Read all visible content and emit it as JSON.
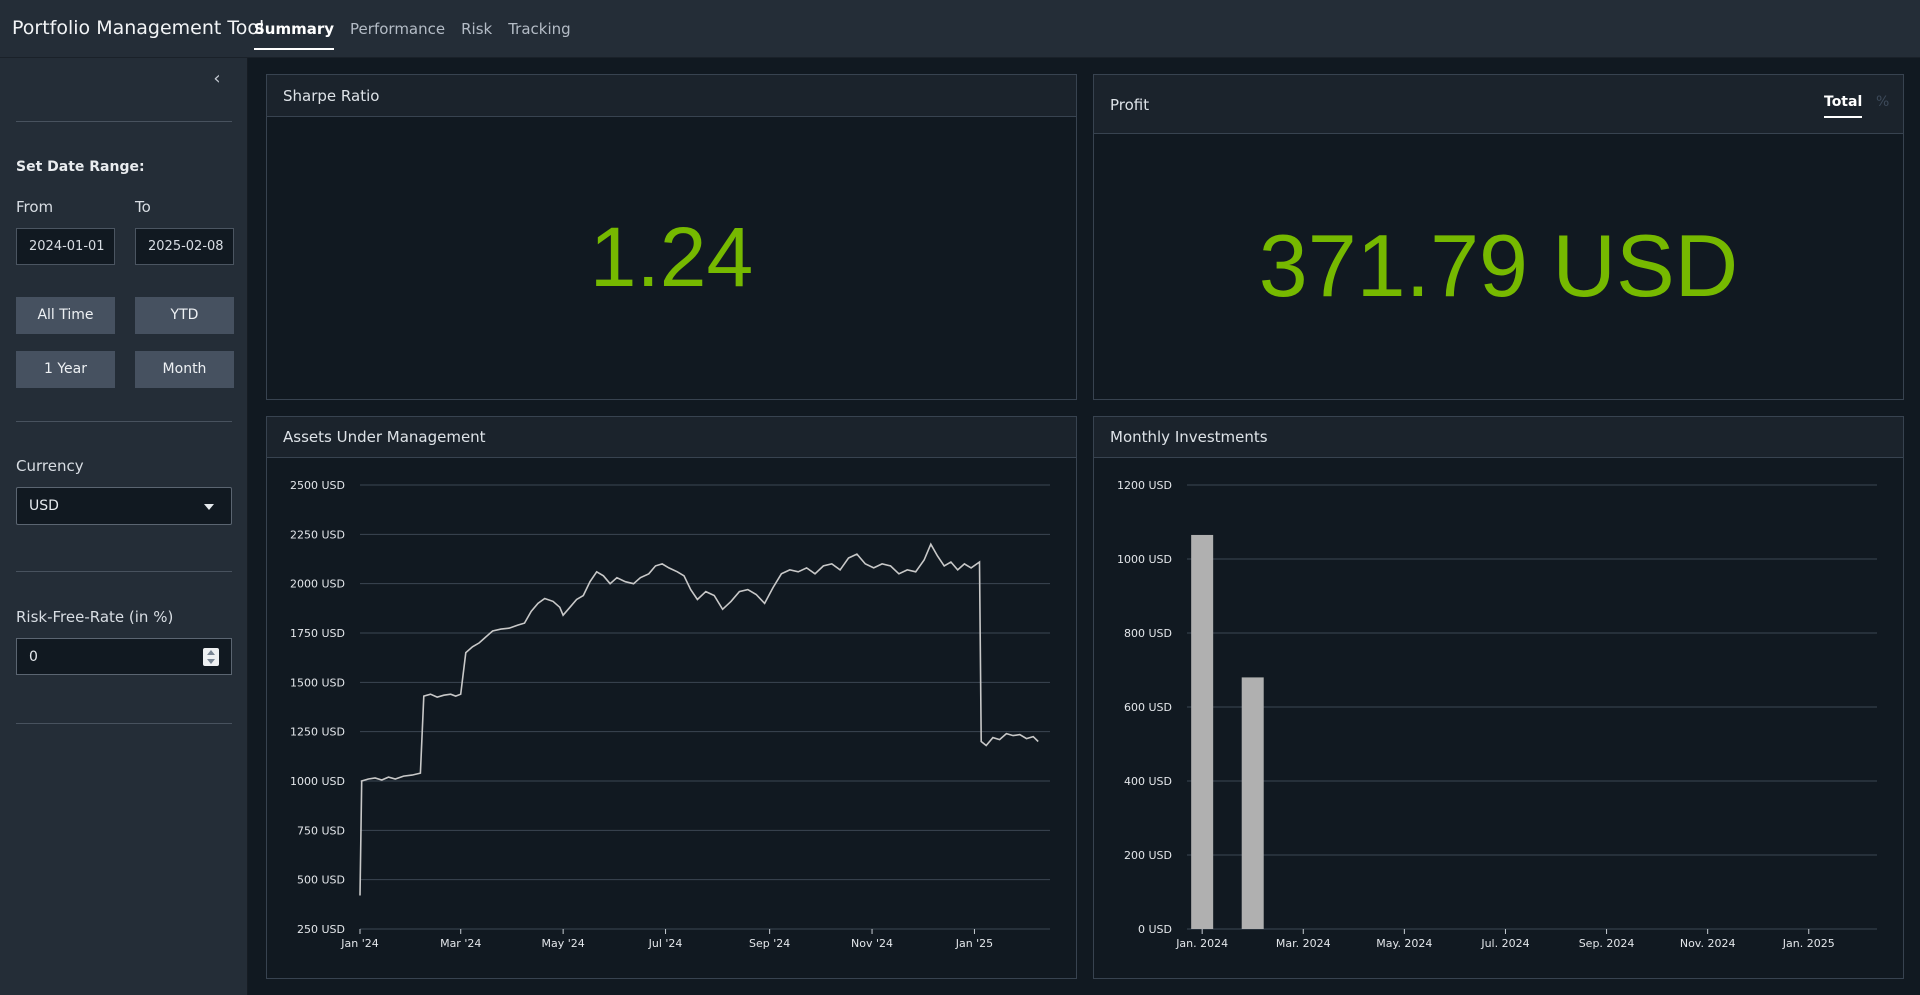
{
  "app": {
    "title": "Portfolio Management Tool"
  },
  "nav": {
    "tabs": [
      "Summary",
      "Performance",
      "Risk",
      "Tracking"
    ],
    "active": "Summary"
  },
  "sidebar": {
    "collapse_icon": "chevron-left-icon",
    "date_range_label": "Set Date Range:",
    "from_label": "From",
    "to_label": "To",
    "from_value": "2024-01-01",
    "to_value": "2025-02-08",
    "buttons": [
      "All Time",
      "YTD",
      "1 Year",
      "Month"
    ],
    "currency_label": "Currency",
    "currency_value": "USD",
    "rfr_label": "Risk-Free-Rate (in %)",
    "rfr_value": "0"
  },
  "cards": {
    "sharpe": {
      "title": "Sharpe Ratio",
      "value": "1.24"
    },
    "profit": {
      "title": "Profit",
      "value": "371.79 USD",
      "tabs": [
        "Total",
        "%"
      ],
      "active_tab": "Total"
    },
    "aum": {
      "title": "Assets Under Management"
    },
    "monthly": {
      "title": "Monthly Investments"
    }
  },
  "colors": {
    "accent_green": "#76b900",
    "line": "#c8c8c8",
    "bar": "#b0b0b0",
    "background": "#111921",
    "sidebar": "#242d37"
  },
  "chart_data": [
    {
      "type": "line",
      "name": "Assets Under Management",
      "y_tick_labels": [
        "2500 USD",
        "2250 USD",
        "2000 USD",
        "1750 USD",
        "1500 USD",
        "1250 USD",
        "1000 USD",
        "750 USD",
        "500 USD",
        "250 USD"
      ],
      "y_ticks": [
        2500,
        2250,
        2000,
        1750,
        1500,
        1250,
        1000,
        750,
        500,
        250
      ],
      "x_tick_labels": [
        "Jan '24",
        "Mar '24",
        "May '24",
        "Jul '24",
        "Sep '24",
        "Nov '24",
        "Jan '25"
      ],
      "x_ticks": [
        "2024-01-01",
        "2024-03-01",
        "2024-05-01",
        "2024-07-01",
        "2024-09-01",
        "2024-11-01",
        "2025-01-01"
      ],
      "x_range": [
        "2024-01-01",
        "2025-02-15"
      ],
      "ylim": [
        250,
        2500
      ],
      "grid": true,
      "points": [
        [
          "2024-01-01",
          420
        ],
        [
          "2024-01-02",
          1000
        ],
        [
          "2024-01-06",
          1010
        ],
        [
          "2024-01-10",
          1015
        ],
        [
          "2024-01-14",
          1005
        ],
        [
          "2024-01-18",
          1020
        ],
        [
          "2024-01-22",
          1010
        ],
        [
          "2024-01-27",
          1025
        ],
        [
          "2024-02-01",
          1030
        ],
        [
          "2024-02-06",
          1040
        ],
        [
          "2024-02-08",
          1430
        ],
        [
          "2024-02-12",
          1440
        ],
        [
          "2024-02-16",
          1425
        ],
        [
          "2024-02-20",
          1435
        ],
        [
          "2024-02-24",
          1440
        ],
        [
          "2024-02-27",
          1430
        ],
        [
          "2024-03-01",
          1440
        ],
        [
          "2024-03-04",
          1650
        ],
        [
          "2024-03-08",
          1680
        ],
        [
          "2024-03-12",
          1700
        ],
        [
          "2024-03-16",
          1730
        ],
        [
          "2024-03-20",
          1760
        ],
        [
          "2024-03-25",
          1770
        ],
        [
          "2024-03-30",
          1775
        ],
        [
          "2024-04-04",
          1790
        ],
        [
          "2024-04-08",
          1800
        ],
        [
          "2024-04-12",
          1860
        ],
        [
          "2024-04-16",
          1900
        ],
        [
          "2024-04-20",
          1925
        ],
        [
          "2024-04-25",
          1910
        ],
        [
          "2024-04-29",
          1880
        ],
        [
          "2024-05-01",
          1840
        ],
        [
          "2024-05-05",
          1880
        ],
        [
          "2024-05-09",
          1920
        ],
        [
          "2024-05-13",
          1940
        ],
        [
          "2024-05-17",
          2010
        ],
        [
          "2024-05-21",
          2060
        ],
        [
          "2024-05-25",
          2040
        ],
        [
          "2024-05-29",
          2000
        ],
        [
          "2024-06-02",
          2030
        ],
        [
          "2024-06-07",
          2010
        ],
        [
          "2024-06-12",
          2000
        ],
        [
          "2024-06-16",
          2030
        ],
        [
          "2024-06-21",
          2050
        ],
        [
          "2024-06-25",
          2090
        ],
        [
          "2024-06-29",
          2100
        ],
        [
          "2024-07-03",
          2080
        ],
        [
          "2024-07-08",
          2060
        ],
        [
          "2024-07-12",
          2040
        ],
        [
          "2024-07-16",
          1970
        ],
        [
          "2024-07-20",
          1920
        ],
        [
          "2024-07-25",
          1960
        ],
        [
          "2024-07-30",
          1940
        ],
        [
          "2024-08-04",
          1870
        ],
        [
          "2024-08-09",
          1910
        ],
        [
          "2024-08-14",
          1960
        ],
        [
          "2024-08-19",
          1970
        ],
        [
          "2024-08-24",
          1945
        ],
        [
          "2024-08-29",
          1900
        ],
        [
          "2024-09-03",
          1980
        ],
        [
          "2024-09-08",
          2050
        ],
        [
          "2024-09-13",
          2070
        ],
        [
          "2024-09-18",
          2060
        ],
        [
          "2024-09-23",
          2080
        ],
        [
          "2024-09-28",
          2050
        ],
        [
          "2024-10-03",
          2090
        ],
        [
          "2024-10-08",
          2100
        ],
        [
          "2024-10-13",
          2070
        ],
        [
          "2024-10-18",
          2130
        ],
        [
          "2024-10-23",
          2150
        ],
        [
          "2024-10-28",
          2100
        ],
        [
          "2024-11-02",
          2080
        ],
        [
          "2024-11-07",
          2100
        ],
        [
          "2024-11-12",
          2090
        ],
        [
          "2024-11-17",
          2050
        ],
        [
          "2024-11-22",
          2070
        ],
        [
          "2024-11-27",
          2060
        ],
        [
          "2024-12-02",
          2120
        ],
        [
          "2024-12-06",
          2200
        ],
        [
          "2024-12-10",
          2140
        ],
        [
          "2024-12-14",
          2090
        ],
        [
          "2024-12-18",
          2110
        ],
        [
          "2024-12-22",
          2070
        ],
        [
          "2024-12-26",
          2100
        ],
        [
          "2024-12-30",
          2080
        ],
        [
          "2025-01-04",
          2110
        ],
        [
          "2025-01-05",
          1200
        ],
        [
          "2025-01-08",
          1180
        ],
        [
          "2025-01-12",
          1220
        ],
        [
          "2025-01-16",
          1210
        ],
        [
          "2025-01-20",
          1240
        ],
        [
          "2025-01-24",
          1230
        ],
        [
          "2025-01-28",
          1235
        ],
        [
          "2025-02-01",
          1215
        ],
        [
          "2025-02-05",
          1225
        ],
        [
          "2025-02-08",
          1200
        ]
      ]
    },
    {
      "type": "bar",
      "name": "Monthly Investments",
      "y_tick_labels": [
        "1200 USD",
        "1000 USD",
        "800 USD",
        "600 USD",
        "400 USD",
        "200 USD",
        "0 USD"
      ],
      "y_ticks": [
        1200,
        1000,
        800,
        600,
        400,
        200,
        0
      ],
      "x_tick_labels": [
        "Jan. 2024",
        "Mar. 2024",
        "May. 2024",
        "Jul. 2024",
        "Sep. 2024",
        "Nov. 2024",
        "Jan. 2025"
      ],
      "x_ticks": [
        "2024-01",
        "2024-03",
        "2024-05",
        "2024-07",
        "2024-09",
        "2024-11",
        "2025-01"
      ],
      "ylim": [
        0,
        1200
      ],
      "grid": true,
      "categories": [
        "2024-01",
        "2024-02"
      ],
      "values": [
        1065,
        680
      ]
    }
  ]
}
